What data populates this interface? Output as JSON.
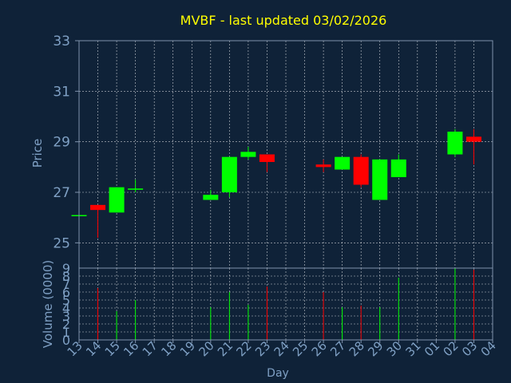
{
  "chart_data": {
    "type": "candlestick",
    "title": "MVBF - last updated 03/02/2026",
    "xlabel": "Day",
    "price_panel": {
      "ylabel": "Price",
      "ylim": [
        24,
        33
      ],
      "yticks": [
        25,
        27,
        29,
        31,
        33
      ]
    },
    "volume_panel": {
      "ylabel": "Volume (0000)",
      "ylim": [
        0,
        9
      ],
      "yticks": [
        0,
        1,
        2,
        3,
        4,
        5,
        6,
        7,
        8,
        9
      ]
    },
    "x_ticks": [
      "13",
      "14",
      "15",
      "16",
      "17",
      "18",
      "19",
      "20",
      "21",
      "22",
      "23",
      "24",
      "25",
      "26",
      "27",
      "28",
      "29",
      "30",
      "31",
      "01",
      "02",
      "03",
      "04"
    ],
    "candles": [
      {
        "day": "13",
        "open": 26.1,
        "high": 26.1,
        "low": 26.1,
        "close": 26.1,
        "volume": 0.0
      },
      {
        "day": "14",
        "open": 26.5,
        "high": 26.5,
        "low": 25.2,
        "close": 26.3,
        "volume": 6.5
      },
      {
        "day": "15",
        "open": 26.2,
        "high": 27.2,
        "low": 26.2,
        "close": 27.2,
        "volume": 3.6
      },
      {
        "day": "16",
        "open": 27.1,
        "high": 27.5,
        "low": 27.0,
        "close": 27.15,
        "volume": 5.0
      },
      {
        "day": "20",
        "open": 26.7,
        "high": 27.1,
        "low": 26.7,
        "close": 26.9,
        "volume": 4.1
      },
      {
        "day": "21",
        "open": 27.0,
        "high": 28.4,
        "low": 26.8,
        "close": 28.4,
        "volume": 6.0
      },
      {
        "day": "22",
        "open": 28.4,
        "high": 28.8,
        "low": 28.3,
        "close": 28.6,
        "volume": 4.4
      },
      {
        "day": "23",
        "open": 28.5,
        "high": 28.5,
        "low": 27.8,
        "close": 28.2,
        "volume": 6.7
      },
      {
        "day": "26",
        "open": 28.1,
        "high": 28.3,
        "low": 27.8,
        "close": 28.0,
        "volume": 6.0
      },
      {
        "day": "27",
        "open": 27.9,
        "high": 28.4,
        "low": 27.9,
        "close": 28.4,
        "volume": 4.1
      },
      {
        "day": "28",
        "open": 28.4,
        "high": 28.5,
        "low": 27.2,
        "close": 27.3,
        "volume": 4.3
      },
      {
        "day": "29",
        "open": 26.7,
        "high": 28.3,
        "low": 26.7,
        "close": 28.3,
        "volume": 4.1
      },
      {
        "day": "30",
        "open": 27.6,
        "high": 28.5,
        "low": 27.6,
        "close": 28.3,
        "volume": 7.8
      },
      {
        "day": "02",
        "open": 28.5,
        "high": 29.5,
        "low": 28.4,
        "close": 29.4,
        "volume": 9.0
      },
      {
        "day": "03",
        "open": 29.2,
        "high": 29.5,
        "low": 28.1,
        "close": 29.0,
        "volume": 8.8
      }
    ],
    "grid": true,
    "colors": {
      "background": "#0f2238",
      "axis": "#7f93ad",
      "title": "#ffff00",
      "label": "#7fa0c4",
      "up": "#00ff00",
      "down": "#ff0000",
      "flat": "#00ff00",
      "grid": "#ffffff"
    }
  }
}
